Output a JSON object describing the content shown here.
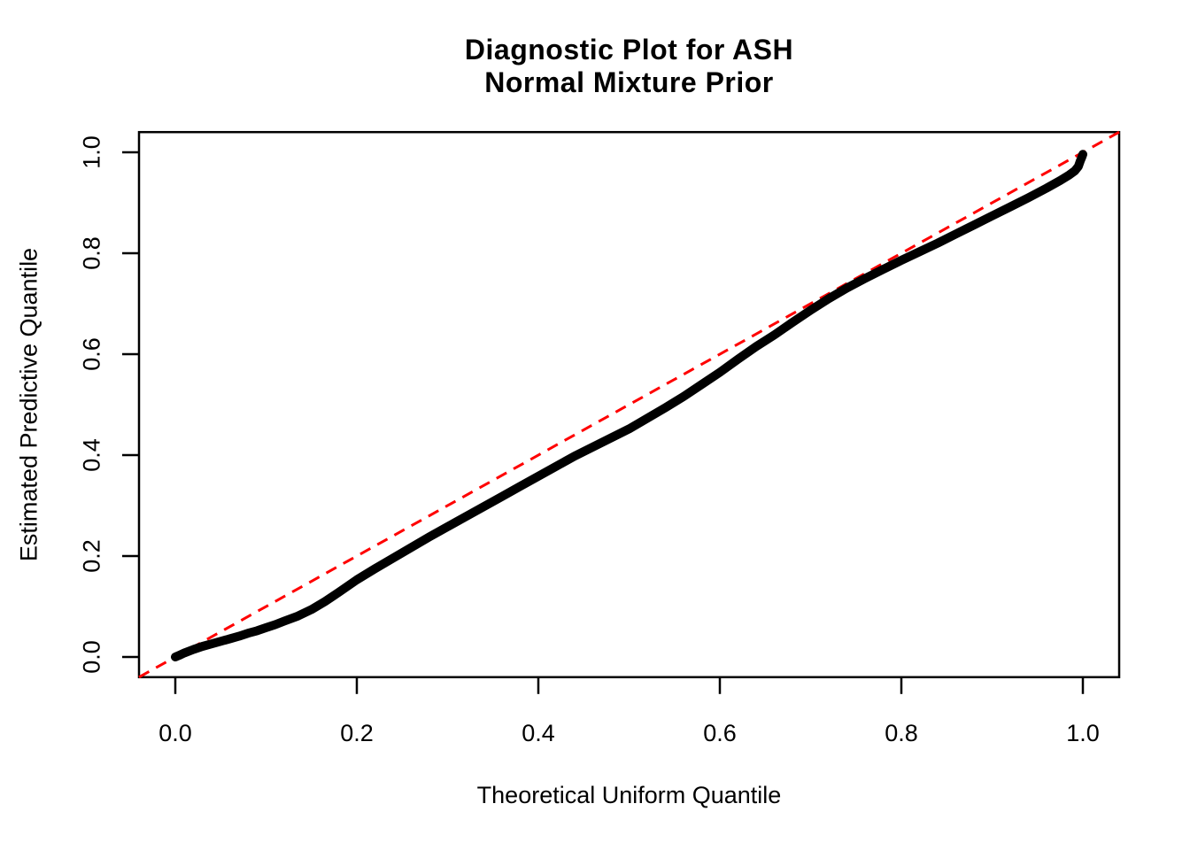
{
  "chart_data": {
    "type": "scatter",
    "title_lines": [
      "Diagnostic Plot for ASH",
      "Normal Mixture Prior"
    ],
    "xlabel": "Theoretical Uniform Quantile",
    "ylabel": "Estimated Predictive Quantile",
    "x_ticks": [
      "0.0",
      "0.2",
      "0.4",
      "0.6",
      "0.8",
      "1.0"
    ],
    "y_ticks": [
      "0.0",
      "0.2",
      "0.4",
      "0.6",
      "0.8",
      "1.0"
    ],
    "xlim": [
      -0.04,
      1.04
    ],
    "ylim": [
      -0.04,
      1.04
    ],
    "grid": false,
    "legend_position": "none",
    "colors": {
      "points": "#000000",
      "reference_line": "#FF0000",
      "axis": "#000000",
      "background": "#FFFFFF"
    },
    "reference_line": {
      "slope": 1,
      "intercept": 0,
      "style": "dashed",
      "color": "#FF0000"
    },
    "series": [
      {
        "name": "predictive-vs-uniform-quantiles",
        "marker": "filled-dot-band",
        "color": "#000000",
        "points": [
          [
            0.0,
            0.0
          ],
          [
            0.004,
            0.003
          ],
          [
            0.01,
            0.008
          ],
          [
            0.02,
            0.015
          ],
          [
            0.03,
            0.021
          ],
          [
            0.04,
            0.026
          ],
          [
            0.05,
            0.031
          ],
          [
            0.06,
            0.036
          ],
          [
            0.07,
            0.041
          ],
          [
            0.08,
            0.047
          ],
          [
            0.09,
            0.052
          ],
          [
            0.1,
            0.058
          ],
          [
            0.11,
            0.064
          ],
          [
            0.12,
            0.071
          ],
          [
            0.135,
            0.081
          ],
          [
            0.15,
            0.094
          ],
          [
            0.165,
            0.11
          ],
          [
            0.18,
            0.128
          ],
          [
            0.2,
            0.153
          ],
          [
            0.22,
            0.175
          ],
          [
            0.24,
            0.196
          ],
          [
            0.26,
            0.217
          ],
          [
            0.28,
            0.238
          ],
          [
            0.3,
            0.258
          ],
          [
            0.32,
            0.278
          ],
          [
            0.34,
            0.298
          ],
          [
            0.36,
            0.318
          ],
          [
            0.38,
            0.338
          ],
          [
            0.4,
            0.358
          ],
          [
            0.42,
            0.378
          ],
          [
            0.44,
            0.398
          ],
          [
            0.46,
            0.416
          ],
          [
            0.48,
            0.434
          ],
          [
            0.5,
            0.452
          ],
          [
            0.52,
            0.473
          ],
          [
            0.54,
            0.494
          ],
          [
            0.56,
            0.516
          ],
          [
            0.58,
            0.54
          ],
          [
            0.6,
            0.564
          ],
          [
            0.62,
            0.59
          ],
          [
            0.64,
            0.615
          ],
          [
            0.66,
            0.638
          ],
          [
            0.68,
            0.663
          ],
          [
            0.7,
            0.687
          ],
          [
            0.72,
            0.71
          ],
          [
            0.74,
            0.731
          ],
          [
            0.76,
            0.75
          ],
          [
            0.78,
            0.768
          ],
          [
            0.8,
            0.786
          ],
          [
            0.82,
            0.803
          ],
          [
            0.84,
            0.82
          ],
          [
            0.86,
            0.838
          ],
          [
            0.88,
            0.856
          ],
          [
            0.9,
            0.874
          ],
          [
            0.92,
            0.892
          ],
          [
            0.94,
            0.91
          ],
          [
            0.96,
            0.929
          ],
          [
            0.975,
            0.944
          ],
          [
            0.985,
            0.955
          ],
          [
            0.991,
            0.963
          ],
          [
            0.995,
            0.972
          ],
          [
            0.997,
            0.982
          ],
          [
            0.999,
            0.991
          ],
          [
            1.0,
            0.996
          ]
        ]
      }
    ]
  }
}
